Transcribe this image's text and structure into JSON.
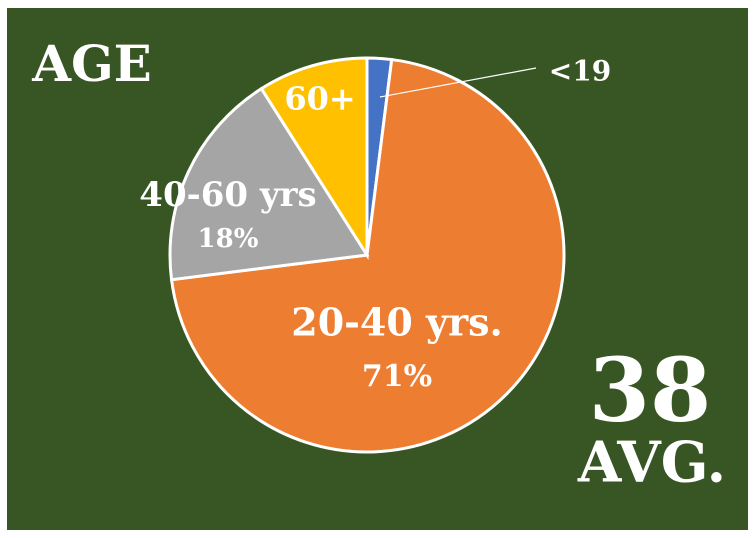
{
  "chart_data": {
    "type": "pie",
    "title": "AGE",
    "categories": [
      "<19",
      "20-40 yrs.",
      "40-60 yrs",
      "60+"
    ],
    "values": [
      2,
      71,
      18,
      9
    ],
    "value_labels": [
      null,
      "71%",
      "18%",
      null
    ],
    "colors": [
      "#4472c4",
      "#ed7d31",
      "#a5a5a5",
      "#ffc000"
    ],
    "annotations": [
      "38",
      "AVG."
    ]
  }
}
